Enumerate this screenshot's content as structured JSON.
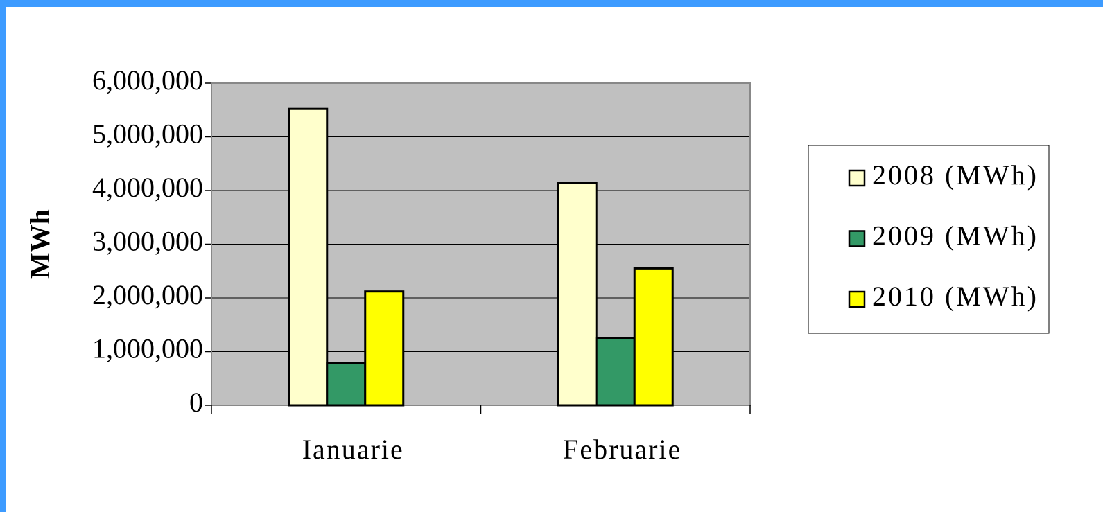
{
  "chart_data": {
    "type": "bar",
    "y_label": "MWh",
    "categories": [
      "Ianuarie",
      "Februarie"
    ],
    "series": [
      {
        "name": "2008 (MWh)",
        "color": "#ffffcc",
        "values": [
          5520000,
          4140000
        ]
      },
      {
        "name": "2009 (MWh)",
        "color": "#339966",
        "values": [
          790000,
          1250000
        ]
      },
      {
        "name": "2010 (MWh)",
        "color": "#ffff00",
        "values": [
          2120000,
          2550000
        ]
      }
    ],
    "ylim": [
      0,
      6000000
    ],
    "yticks": [
      0,
      {
        "value": 1000000,
        "label": "1,000,000"
      },
      {
        "value": 2000000,
        "label": "2,000,000"
      },
      {
        "value": 3000000,
        "label": "3,000,000"
      },
      {
        "value": 4000000,
        "label": "4,000,000"
      },
      {
        "value": 5000000,
        "label": "5,000,000"
      },
      {
        "value": 6000000,
        "label": "6,000,000"
      }
    ],
    "grid": true,
    "legend": "right"
  }
}
